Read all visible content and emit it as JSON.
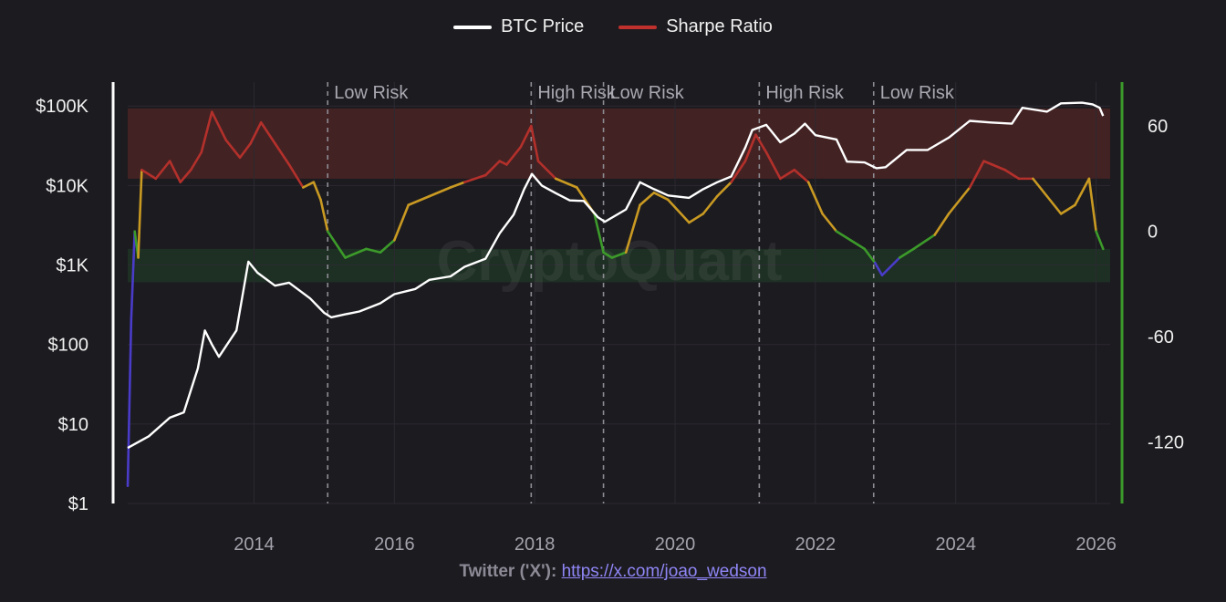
{
  "legend": {
    "price_label": "BTC Price",
    "sharpe_label": "Sharpe Ratio",
    "price_color": "#ffffff",
    "sharpe_color": "#c0302c"
  },
  "footer": {
    "prefix": "Twitter ('X'):",
    "link_text": "https://x.com/joao_wedson"
  },
  "watermark": "CryptoQuant",
  "chart_data": {
    "type": "line",
    "x_ticks": [
      "2014",
      "2016",
      "2018",
      "2020",
      "2022",
      "2024",
      "2026"
    ],
    "x_range": [
      2012.2,
      2026.2
    ],
    "y_left": {
      "scale": "log",
      "range": [
        1,
        200000
      ],
      "ticks": [
        1,
        10,
        100,
        1000,
        10000,
        100000
      ],
      "tick_labels": [
        "$1",
        "$10",
        "$100",
        "$1K",
        "$10K",
        "$100K"
      ]
    },
    "y_right": {
      "scale": "linear",
      "range": [
        -155,
        85
      ],
      "ticks": [
        60,
        0,
        -60,
        -120
      ],
      "tick_labels": [
        "60",
        "0",
        "-60",
        "-120"
      ]
    },
    "zones": [
      {
        "name": "high",
        "from": 30,
        "to": 70,
        "color": "#4a2325"
      },
      {
        "name": "low",
        "from": -29,
        "to": -10,
        "color": "#1f3326"
      }
    ],
    "risk_colors": {
      "very_low": "#4a3cc9",
      "low": "#3c9a2a",
      "neutral": "#c99a22",
      "high": "#b3302b"
    },
    "annotations": [
      {
        "x": 2015.05,
        "label": "Low Risk"
      },
      {
        "x": 2017.95,
        "label": "High Risk"
      },
      {
        "x": 2018.98,
        "label": "Low Risk"
      },
      {
        "x": 2021.2,
        "label": "High Risk"
      },
      {
        "x": 2022.83,
        "label": "Low Risk"
      }
    ],
    "series": [
      {
        "name": "BTC Price",
        "axis": "left",
        "x": [
          2012.2,
          2012.5,
          2012.8,
          2013.0,
          2013.2,
          2013.3,
          2013.4,
          2013.5,
          2013.6,
          2013.75,
          2013.92,
          2014.05,
          2014.3,
          2014.5,
          2014.8,
          2015.0,
          2015.1,
          2015.3,
          2015.5,
          2015.8,
          2016.0,
          2016.3,
          2016.5,
          2016.8,
          2017.0,
          2017.3,
          2017.5,
          2017.7,
          2017.85,
          2017.96,
          2018.1,
          2018.3,
          2018.5,
          2018.7,
          2018.9,
          2019.0,
          2019.3,
          2019.5,
          2019.7,
          2019.9,
          2020.2,
          2020.4,
          2020.6,
          2020.8,
          2021.0,
          2021.1,
          2021.3,
          2021.5,
          2021.7,
          2021.85,
          2022.0,
          2022.3,
          2022.45,
          2022.7,
          2022.87,
          2023.0,
          2023.3,
          2023.6,
          2023.9,
          2024.2,
          2024.5,
          2024.8,
          2024.95,
          2025.3,
          2025.5,
          2025.8,
          2025.95,
          2026.05,
          2026.1
        ],
        "y": [
          5,
          7,
          12,
          14,
          50,
          150,
          100,
          70,
          95,
          150,
          1100,
          800,
          550,
          600,
          380,
          250,
          220,
          240,
          260,
          330,
          430,
          500,
          650,
          720,
          950,
          1200,
          2500,
          4300,
          9000,
          14000,
          10000,
          8000,
          6500,
          6400,
          4000,
          3500,
          5000,
          11000,
          9000,
          7500,
          7000,
          9000,
          11000,
          13000,
          30000,
          50000,
          58000,
          35000,
          45000,
          60000,
          43000,
          38000,
          20000,
          19500,
          16500,
          17000,
          28000,
          28000,
          40000,
          65000,
          62000,
          60000,
          95000,
          85000,
          108000,
          110000,
          105000,
          95000,
          75000
        ]
      },
      {
        "name": "Sharpe Ratio",
        "axis": "right",
        "x": [
          2012.2,
          2012.25,
          2012.3,
          2012.35,
          2012.4,
          2012.6,
          2012.8,
          2012.95,
          2013.1,
          2013.25,
          2013.4,
          2013.6,
          2013.8,
          2013.95,
          2014.1,
          2014.3,
          2014.5,
          2014.7,
          2014.85,
          2014.95,
          2015.05,
          2015.3,
          2015.6,
          2015.8,
          2016.0,
          2016.2,
          2016.5,
          2016.8,
          2017.0,
          2017.3,
          2017.5,
          2017.6,
          2017.8,
          2017.95,
          2018.05,
          2018.3,
          2018.6,
          2018.85,
          2018.98,
          2019.1,
          2019.3,
          2019.5,
          2019.7,
          2019.9,
          2020.2,
          2020.4,
          2020.6,
          2020.8,
          2021.0,
          2021.15,
          2021.3,
          2021.5,
          2021.7,
          2021.9,
          2022.1,
          2022.3,
          2022.5,
          2022.7,
          2022.85,
          2022.95,
          2023.2,
          2023.4,
          2023.7,
          2023.9,
          2024.2,
          2024.4,
          2024.7,
          2024.9,
          2025.1,
          2025.3,
          2025.5,
          2025.7,
          2025.9,
          2026.0,
          2026.05,
          2026.1
        ],
        "y": [
          -145,
          -50,
          0,
          -15,
          35,
          30,
          40,
          28,
          35,
          45,
          68,
          52,
          42,
          50,
          62,
          50,
          38,
          25,
          28,
          18,
          0,
          -15,
          -10,
          -12,
          -5,
          15,
          20,
          25,
          28,
          32,
          40,
          38,
          48,
          60,
          40,
          30,
          25,
          10,
          -12,
          -15,
          -12,
          15,
          22,
          18,
          5,
          10,
          20,
          28,
          40,
          55,
          45,
          30,
          35,
          28,
          10,
          0,
          -5,
          -10,
          -18,
          -25,
          -15,
          -10,
          -2,
          10,
          25,
          40,
          35,
          30,
          30,
          20,
          10,
          15,
          30,
          0,
          -5,
          -10
        ]
      }
    ]
  }
}
